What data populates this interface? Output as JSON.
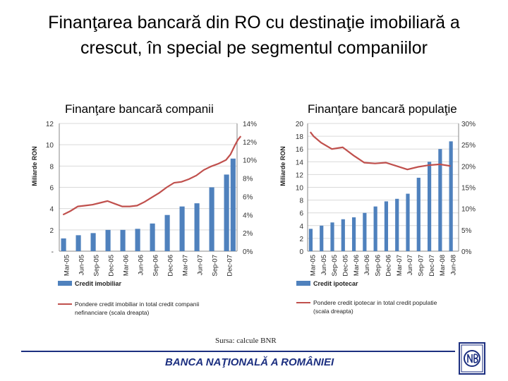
{
  "title": "Finanţarea bancară din RO cu destinaţie imobiliară a crescut, în special pe segmentul companiilor",
  "source": "Sursa: calcule BNR",
  "footer": "BANCA NAŢIONALĂ A ROMÂNIEI",
  "colors": {
    "bar": "#4f81bd",
    "line": "#c0504d",
    "footer": "#1c2f80",
    "grid": "#d9d9d9"
  },
  "chart_data": [
    {
      "type": "bar",
      "title": "Finanţare bancară companii",
      "ylabel": "Miliarde RON",
      "ylim": [
        0,
        12
      ],
      "yticks": [
        "-",
        "2",
        "4",
        "6",
        "8",
        "10",
        "12"
      ],
      "y2lim": [
        0,
        14
      ],
      "y2ticks": [
        "0%",
        "2%",
        "4%",
        "6%",
        "8%",
        "10%",
        "12%",
        "14%"
      ],
      "categories": [
        "Mar-05",
        "Jun-05",
        "Sep-05",
        "Dec-05",
        "Mar-06",
        "Jun-06",
        "Sep-06",
        "Dec-06",
        "Mar-07",
        "Jun-07",
        "Sep-07",
        "Dec-07"
      ],
      "series": [
        {
          "name": "Credit imobiliar",
          "kind": "bar",
          "axis": "left",
          "values": [
            1.2,
            1.5,
            1.7,
            2.0,
            2.0,
            2.1,
            2.6,
            3.4,
            4.2,
            4.5,
            6.0,
            7.2
          ],
          "extra_bar": 8.7
        },
        {
          "name": "Pondere credit imobiliar in total credit companii nefinanciare (scala dreapta)",
          "kind": "line",
          "axis": "right",
          "x": [
            0,
            0.5,
            1,
            1.5,
            2,
            2.5,
            3,
            3.5,
            4,
            4.5,
            5,
            5.5,
            6,
            6.5,
            7,
            7.5,
            8,
            8.5,
            9,
            9.5,
            10,
            10.5,
            11,
            11.3,
            11.6,
            11.8,
            12.0
          ],
          "values": [
            4.0,
            4.4,
            4.9,
            5.0,
            5.1,
            5.3,
            5.5,
            5.2,
            4.9,
            4.9,
            5.0,
            5.4,
            5.9,
            6.4,
            7.0,
            7.5,
            7.6,
            7.9,
            8.3,
            8.9,
            9.3,
            9.6,
            10.0,
            10.6,
            11.6,
            12.2,
            12.6
          ]
        }
      ],
      "legend": "bottom"
    },
    {
      "type": "bar",
      "title": "Finanţare bancară populaţie",
      "ylabel": "Miliarde RON",
      "ylim": [
        0,
        20
      ],
      "yticks": [
        "0",
        "2",
        "4",
        "6",
        "8",
        "10",
        "12",
        "14",
        "16",
        "18",
        "20"
      ],
      "y2lim": [
        0,
        30
      ],
      "y2ticks": [
        "0%",
        "5%",
        "10%",
        "15%",
        "20%",
        "25%",
        "30%"
      ],
      "categories": [
        "Mar-05",
        "Jun-05",
        "Sep-05",
        "Dec-05",
        "Mar-06",
        "Jun-06",
        "Sep-06",
        "Dec-06",
        "Mar-07",
        "Jun-07",
        "Sep-07",
        "Dec-07",
        "Mar-08",
        "Jun-08"
      ],
      "series": [
        {
          "name": "Credit ipotecar",
          "kind": "bar",
          "axis": "left",
          "values": [
            3.5,
            4.0,
            4.5,
            5.0,
            5.3,
            6.0,
            7.0,
            7.8,
            8.2,
            9.0,
            11.5,
            14.0,
            16.0,
            17.2
          ]
        },
        {
          "name": "Pondere credit ipotecar in total credit populatie (scala dreapta)",
          "kind": "line",
          "axis": "right",
          "x": [
            0,
            0.3,
            1,
            2,
            2.5,
            3,
            4,
            5,
            6,
            7,
            8,
            9,
            10,
            11,
            12,
            13
          ],
          "values": [
            28,
            27,
            25.5,
            24,
            24.2,
            24.4,
            22.5,
            20.8,
            20.6,
            20.8,
            20.0,
            19.2,
            19.8,
            20.2,
            20.4,
            20.0
          ]
        }
      ],
      "legend": "bottom"
    }
  ]
}
